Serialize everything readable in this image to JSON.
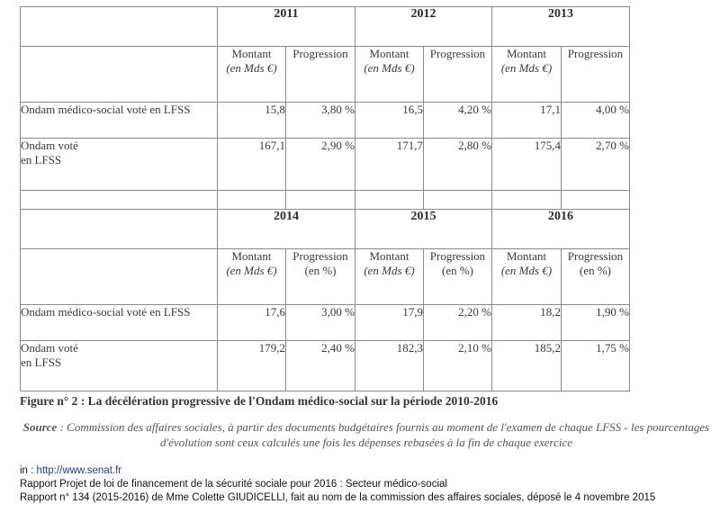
{
  "table": {
    "col_montant": "Montant",
    "col_montant_unit": "(en Mds €)",
    "col_progression": "Progression",
    "col_progression_unit": "(en %)",
    "block1": {
      "years": [
        "2011",
        "2012",
        "2013"
      ],
      "rows": [
        {
          "label": "Ondam médico-social voté en LFSS",
          "values": [
            "15,8",
            "3,80 %",
            "16,5",
            "4,20 %",
            "17,1",
            "4,00 %"
          ]
        },
        {
          "label_line1": "Ondam voté",
          "label_line2": "en LFSS",
          "values": [
            "167,1",
            "2,90 %",
            "171,7",
            "2,80 %",
            "175,4",
            "2,70 %"
          ]
        }
      ]
    },
    "block2": {
      "years": [
        "2014",
        "2015",
        "2016"
      ],
      "rows": [
        {
          "label": "Ondam médico-social voté en LFSS",
          "values": [
            "17,6",
            "3,00 %",
            "17,9",
            "2,20 %",
            "18,2",
            "1,90 %"
          ]
        },
        {
          "label_line1": "Ondam voté",
          "label_line2": "en LFSS",
          "values": [
            "179,2",
            "2,40 %",
            "182,3",
            "2,10 %",
            "185,2",
            "1,75 %"
          ]
        }
      ]
    }
  },
  "caption": {
    "fig": "Figure n° 2 :",
    "text": " La décélération progressive de l'Ondam médico-social sur la période 2010-2016"
  },
  "source": {
    "label": "Source",
    "text": " : Commission des affaires sociales, à partir des documents budgétaires fournis au moment de l'examen de chaque LFSS - les pourcentages d'évolution sont ceux calculés une fois les dépenses rebasées à la fin de chaque exercice"
  },
  "refs": {
    "in_label": "in : ",
    "url": "http://www.senat.fr",
    "line2": "Rapport Projet de loi de financement de la sécurité sociale pour 2016 : Secteur médico-social",
    "line3": "Rapport n° 134 (2015-2016) de Mme Colette GIUDICELLI, fait au nom de la commission des affaires sociales, déposé le 4 novembre 2015"
  }
}
